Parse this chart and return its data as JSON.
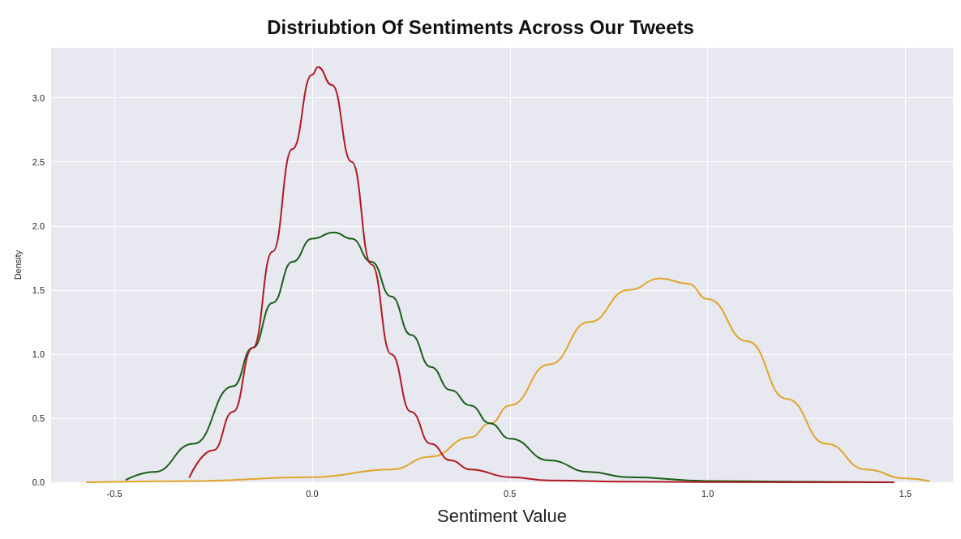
{
  "chart_data": {
    "type": "line",
    "title": "Distriubtion Of Sentiments Across Our Tweets",
    "xlabel": "Sentiment Value",
    "ylabel": "Density",
    "xlim": [
      -0.66,
      1.62
    ],
    "xticks": [
      -0.5,
      {
        "value": 0,
        "label": "0.0"
      },
      0.5,
      {
        "value": 1,
        "label": "1.0"
      },
      1.5
    ],
    "ylim": [
      0,
      3.39
    ],
    "yticks": [
      {
        "value": 0,
        "label": "0.0"
      },
      0.5,
      {
        "value": 1,
        "label": "1.0"
      },
      1.5,
      {
        "value": 2,
        "label": "2.0"
      },
      2.5,
      {
        "value": 3,
        "label": "3.0"
      }
    ],
    "grid": true,
    "marker": "none",
    "line_style": "solid",
    "series": [
      {
        "color": "#e0a52a",
        "x": [
          -0.57,
          -0.3,
          0.0,
          0.2,
          0.3,
          0.4,
          0.45,
          0.5,
          0.6,
          0.7,
          0.8,
          0.88,
          0.95,
          1.0,
          1.1,
          1.2,
          1.3,
          1.4,
          1.5,
          1.56
        ],
        "values": [
          0.0,
          0.01,
          0.04,
          0.1,
          0.2,
          0.35,
          0.46,
          0.6,
          0.92,
          1.25,
          1.5,
          1.59,
          1.55,
          1.43,
          1.1,
          0.65,
          0.3,
          0.1,
          0.03,
          0.01
        ]
      },
      {
        "color": "#1a5e1a",
        "x": [
          -0.47,
          -0.4,
          -0.3,
          -0.2,
          -0.15,
          -0.1,
          -0.05,
          0.0,
          0.055,
          0.1,
          0.15,
          0.2,
          0.25,
          0.3,
          0.35,
          0.4,
          0.45,
          0.5,
          0.6,
          0.7,
          0.8,
          1.0,
          1.2,
          1.47
        ],
        "values": [
          0.02,
          0.08,
          0.3,
          0.75,
          1.05,
          1.4,
          1.72,
          1.9,
          1.95,
          1.9,
          1.72,
          1.45,
          1.15,
          0.9,
          0.72,
          0.6,
          0.46,
          0.34,
          0.17,
          0.08,
          0.04,
          0.01,
          0.005,
          0.0
        ]
      },
      {
        "color": "#b01a22",
        "x": [
          -0.31,
          -0.25,
          -0.2,
          -0.15,
          -0.1,
          -0.05,
          0.0,
          0.015,
          0.05,
          0.1,
          0.15,
          0.2,
          0.25,
          0.3,
          0.35,
          0.4,
          0.5,
          0.6,
          0.8,
          1.0,
          1.47
        ],
        "values": [
          0.04,
          0.25,
          0.55,
          1.05,
          1.8,
          2.6,
          3.18,
          3.24,
          3.1,
          2.5,
          1.7,
          1.0,
          0.55,
          0.3,
          0.17,
          0.1,
          0.04,
          0.015,
          0.005,
          0.002,
          0.0
        ]
      }
    ]
  }
}
